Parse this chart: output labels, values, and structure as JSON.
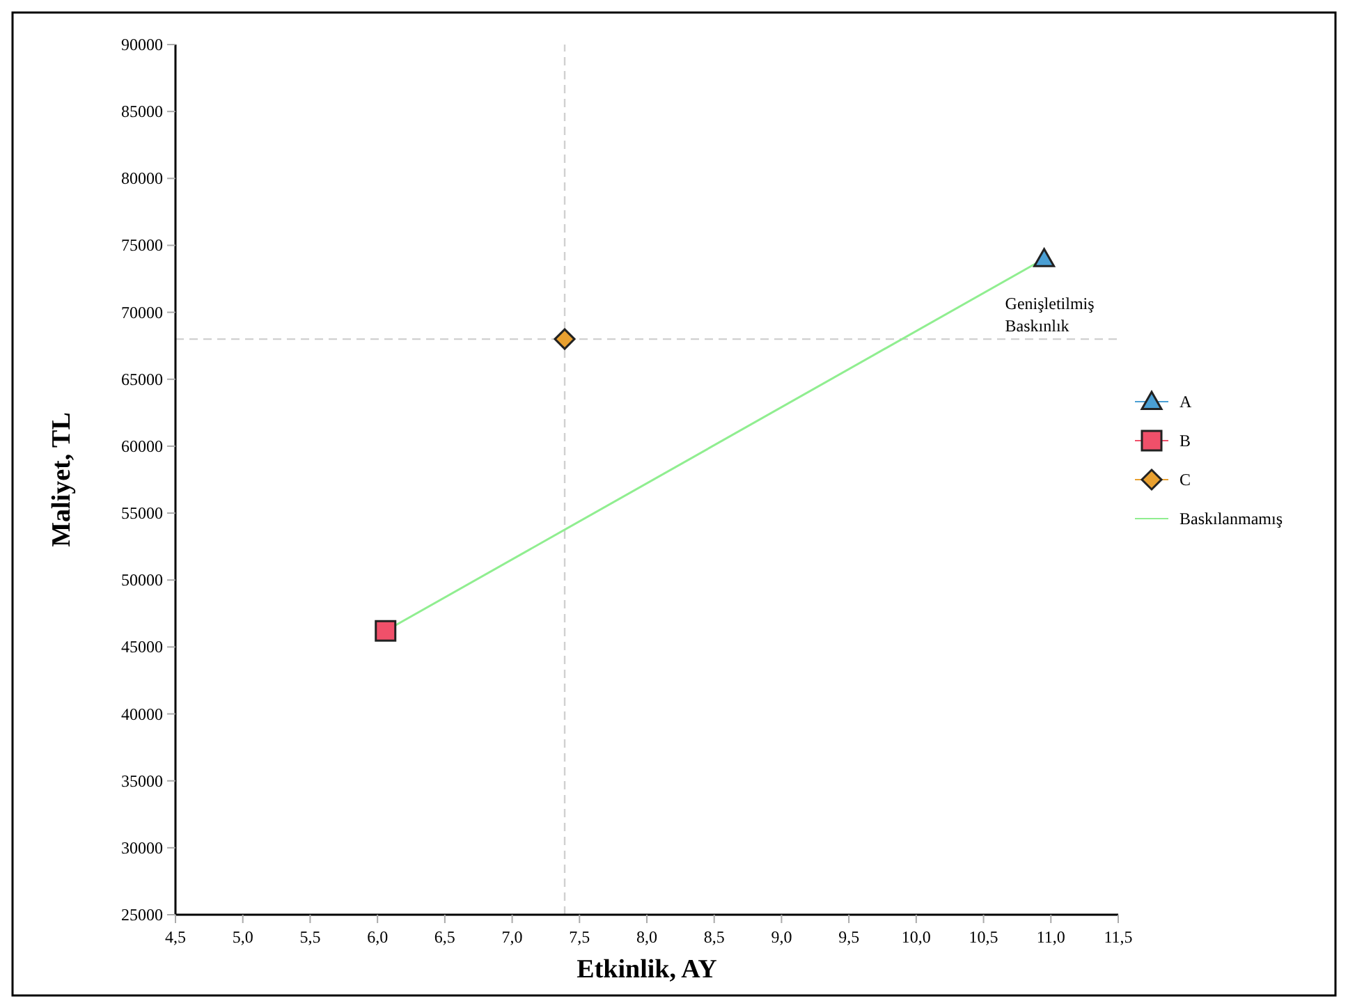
{
  "chart_data": {
    "type": "scatter",
    "xlabel": "Etkinlik, AY",
    "ylabel": "Maliyet, TL",
    "xlim": [
      4.5,
      11.5
    ],
    "ylim": [
      25000,
      90000
    ],
    "xticks": [
      {
        "value": 4.5,
        "label": "4,5"
      },
      {
        "value": 5,
        "label": "5,0"
      },
      {
        "value": 5.5,
        "label": "5,5"
      },
      {
        "value": 6,
        "label": "6,0"
      },
      {
        "value": 6.5,
        "label": "6,5"
      },
      {
        "value": 7,
        "label": "7,0"
      },
      {
        "value": 7.5,
        "label": "7,5"
      },
      {
        "value": 8,
        "label": "8,0"
      },
      {
        "value": 8.5,
        "label": "8,5"
      },
      {
        "value": 9,
        "label": "9,0"
      },
      {
        "value": 9.5,
        "label": "9,5"
      },
      {
        "value": 10,
        "label": "10,0"
      },
      {
        "value": 10.5,
        "label": "10,5"
      },
      {
        "value": 11,
        "label": "11,0"
      },
      {
        "value": 11.5,
        "label": "11,5"
      }
    ],
    "yticks": [
      25000,
      30000,
      35000,
      40000,
      45000,
      50000,
      55000,
      60000,
      65000,
      70000,
      75000,
      80000,
      85000,
      90000
    ],
    "series": [
      {
        "name": "A",
        "marker": "triangle",
        "color": "#4a9fd4",
        "x": [
          10.95
        ],
        "values": [
          74000
        ]
      },
      {
        "name": "B",
        "marker": "square",
        "color": "#f0506a",
        "x": [
          6.06
        ],
        "values": [
          46200
        ]
      },
      {
        "name": "C",
        "marker": "diamond",
        "color": "#e8a030",
        "x": [
          7.39
        ],
        "values": [
          68000
        ]
      },
      {
        "name": "Baskılanmamış",
        "type": "line",
        "marker": "none",
        "color": "#90ee90",
        "x": [
          6.06,
          10.95
        ],
        "values": [
          46200,
          74000
        ]
      }
    ],
    "ref_lines": [
      {
        "axis": "x",
        "value": 7.39,
        "color": "#d0d0d0",
        "line_style": "dashed"
      },
      {
        "axis": "y",
        "value": 68000,
        "color": "#d0d0d0",
        "line_style": "dashed"
      }
    ],
    "annotations": [
      {
        "text": "Genişletilmiş Baskınlık",
        "x": 10.95,
        "y": 74000
      }
    ],
    "legend": "right",
    "grid": false
  }
}
